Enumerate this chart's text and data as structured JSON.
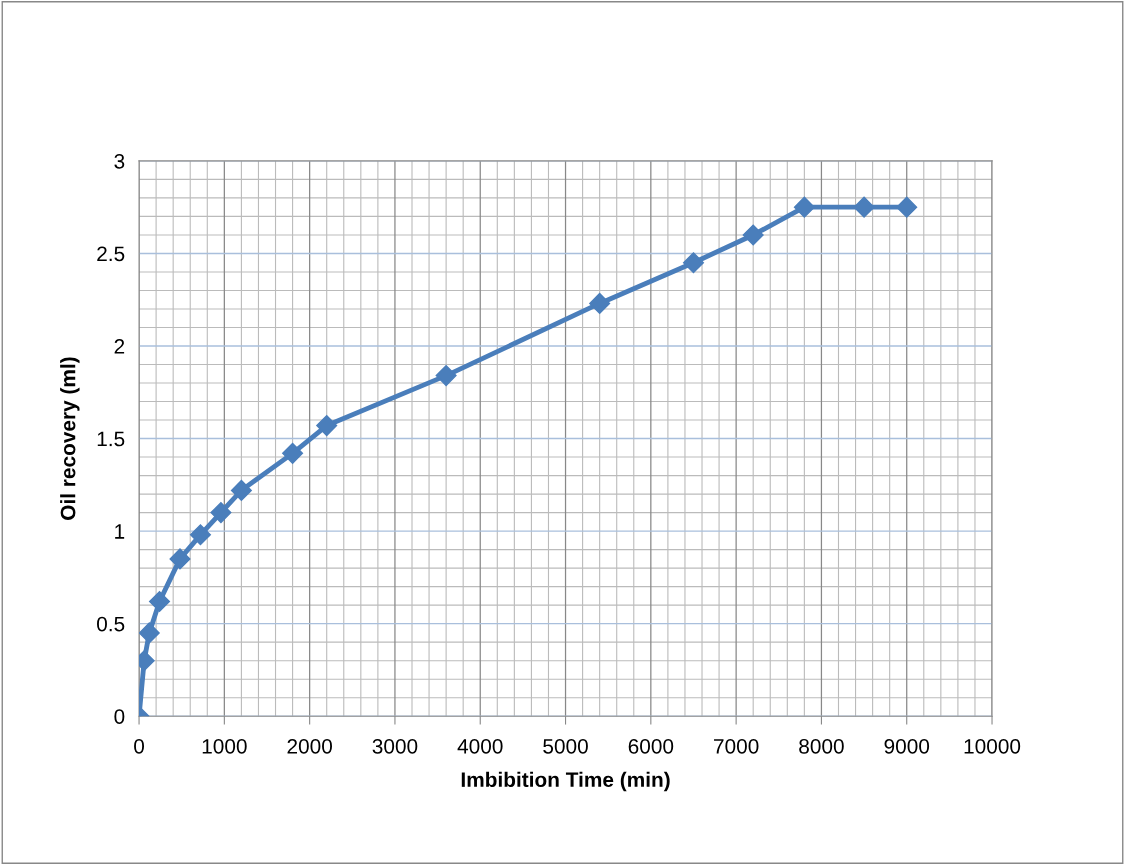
{
  "chart_data": {
    "type": "line",
    "xlabel": "Imbibition Time (min)",
    "ylabel": "Oil recovery (ml)",
    "x": [
      0,
      60,
      120,
      240,
      480,
      720,
      960,
      1200,
      1800,
      2200,
      3600,
      5400,
      6500,
      7200,
      7800,
      8500,
      9000
    ],
    "series": [
      {
        "color": "#4a7ebb",
        "values": [
          0,
          0.3,
          0.45,
          0.62,
          0.85,
          0.98,
          1.1,
          1.22,
          1.42,
          1.57,
          1.84,
          2.23,
          2.45,
          2.6,
          2.75,
          2.75,
          2.75
        ]
      }
    ],
    "xlim": [
      0,
      10000
    ],
    "xticks": [
      0,
      1000,
      2000,
      3000,
      4000,
      5000,
      6000,
      7000,
      8000,
      9000,
      10000
    ],
    "ylim": [
      0,
      3
    ],
    "yticks": [
      0,
      0.5,
      1,
      1.5,
      2,
      2.5,
      3
    ],
    "grid": true,
    "marker": "diamond",
    "line_style": "solid"
  }
}
